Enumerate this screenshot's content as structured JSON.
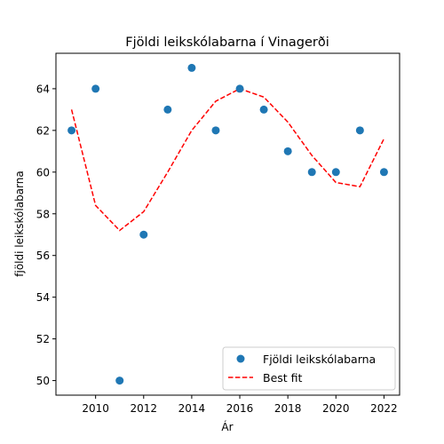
{
  "chart_data": {
    "type": "scatter",
    "title": "Fjöldi leikskólabarna í Vinagerði",
    "xlabel": "Ár",
    "ylabel": "fjöldi leikskólabarna",
    "xlim": [
      2008.35,
      2022.65
    ],
    "ylim": [
      49.3,
      65.7
    ],
    "xticks": [
      2010,
      2012,
      2014,
      2016,
      2018,
      2020,
      2022
    ],
    "yticks": [
      50,
      52,
      54,
      56,
      58,
      60,
      62,
      64
    ],
    "grid": false,
    "legend_position": "lower-right",
    "series": [
      {
        "name": "Fjöldi leikskólabarna",
        "kind": "scatter",
        "color": "#1f77b4",
        "x": [
          2009,
          2010,
          2011,
          2012,
          2013,
          2014,
          2015,
          2016,
          2017,
          2018,
          2019,
          2020,
          2021,
          2022
        ],
        "y": [
          62,
          64,
          50,
          57,
          63,
          65,
          62,
          64,
          63,
          61,
          60,
          60,
          62,
          60
        ]
      },
      {
        "name": "Best fit",
        "kind": "line",
        "style": "dashed",
        "color": "#ff0000",
        "x": [
          2009,
          2010,
          2011,
          2012,
          2013,
          2014,
          2015,
          2016,
          2017,
          2018,
          2019,
          2020,
          2021,
          2022
        ],
        "y": [
          63.0,
          58.4,
          57.2,
          58.1,
          60.0,
          62.0,
          63.4,
          64.0,
          63.6,
          62.4,
          60.8,
          59.5,
          59.3,
          61.6
        ]
      }
    ]
  }
}
